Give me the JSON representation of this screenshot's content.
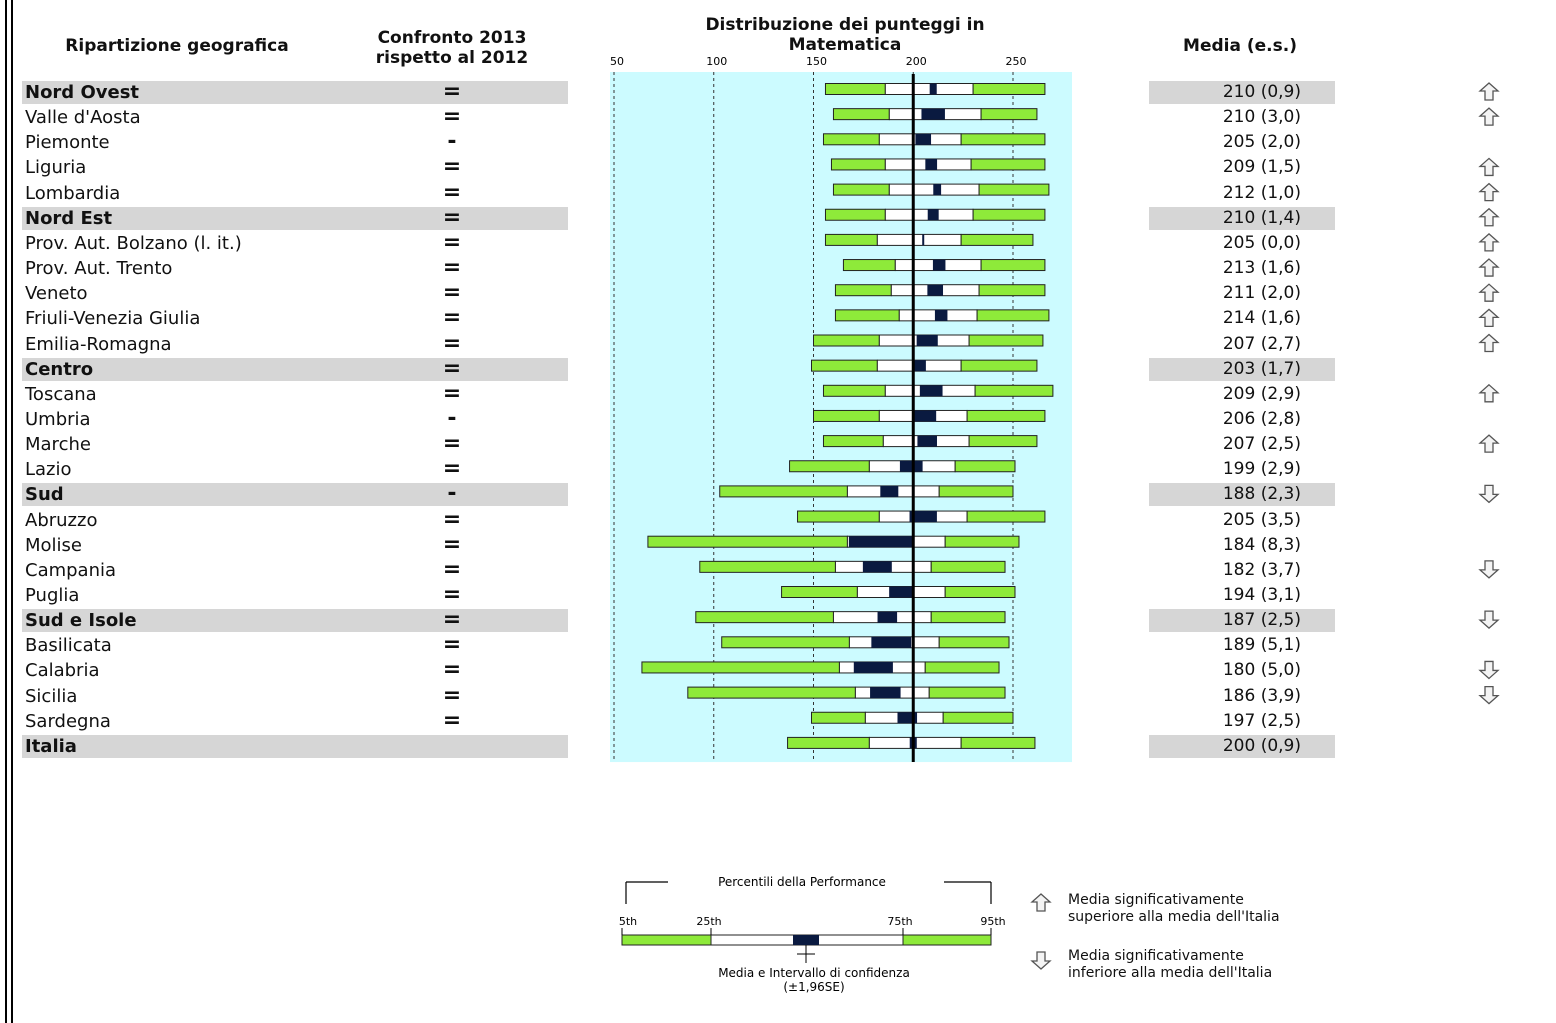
{
  "headers": {
    "region": "Ripartizione geografica",
    "compare_line1": "Confronto 2013",
    "compare_line2": "rispetto al 2012",
    "chart_line1": "Distribuzione dei punteggi in",
    "chart_line2": "Matematica",
    "mean": "Media (e.s.)"
  },
  "chart_data": {
    "type": "box-percentile",
    "xlim": [
      50,
      280
    ],
    "ticks": [
      50,
      100,
      150,
      200,
      250
    ],
    "reference_value": 200,
    "rows": [
      {
        "label": "Nord Ovest",
        "highlight": true,
        "compare": "=",
        "p5": 156,
        "p25": 186,
        "p75": 230,
        "p95": 266,
        "mean": 210,
        "se": 0.9,
        "mean_text": "210 (0,9)",
        "arrow": "up"
      },
      {
        "label": "Valle d'Aosta",
        "highlight": false,
        "compare": "=",
        "p5": 160,
        "p25": 188,
        "p75": 234,
        "p95": 262,
        "mean": 210,
        "se": 3.0,
        "mean_text": "210 (3,0)",
        "arrow": "up"
      },
      {
        "label": "Piemonte",
        "highlight": false,
        "compare": "-",
        "p5": 155,
        "p25": 183,
        "p75": 224,
        "p95": 266,
        "mean": 205,
        "se": 2.0,
        "mean_text": "205 (2,0)",
        "arrow": ""
      },
      {
        "label": "Liguria",
        "highlight": false,
        "compare": "=",
        "p5": 159,
        "p25": 186,
        "p75": 229,
        "p95": 266,
        "mean": 209,
        "se": 1.5,
        "mean_text": "209 (1,5)",
        "arrow": "up"
      },
      {
        "label": "Lombardia",
        "highlight": false,
        "compare": "=",
        "p5": 160,
        "p25": 188,
        "p75": 233,
        "p95": 268,
        "mean": 212,
        "se": 1.0,
        "mean_text": "212 (1,0)",
        "arrow": "up"
      },
      {
        "label": "Nord Est",
        "highlight": true,
        "compare": "=",
        "p5": 156,
        "p25": 186,
        "p75": 230,
        "p95": 266,
        "mean": 210,
        "se": 1.4,
        "mean_text": "210 (1,4)",
        "arrow": "up"
      },
      {
        "label": "Prov. Aut. Bolzano (l. it.)",
        "highlight": false,
        "compare": "=",
        "p5": 156,
        "p25": 182,
        "p75": 224,
        "p95": 260,
        "mean": 205,
        "se": 0.0,
        "mean_text": "205 (0,0)",
        "arrow": "up"
      },
      {
        "label": "Prov. Aut. Trento",
        "highlight": false,
        "compare": "=",
        "p5": 165,
        "p25": 191,
        "p75": 234,
        "p95": 266,
        "mean": 213,
        "se": 1.6,
        "mean_text": "213 (1,6)",
        "arrow": "up"
      },
      {
        "label": "Veneto",
        "highlight": false,
        "compare": "=",
        "p5": 161,
        "p25": 189,
        "p75": 233,
        "p95": 266,
        "mean": 211,
        "se": 2.0,
        "mean_text": "211 (2,0)",
        "arrow": "up"
      },
      {
        "label": "Friuli-Venezia Giulia",
        "highlight": false,
        "compare": "=",
        "p5": 161,
        "p25": 193,
        "p75": 232,
        "p95": 268,
        "mean": 214,
        "se": 1.6,
        "mean_text": "214 (1,6)",
        "arrow": "up"
      },
      {
        "label": "Emilia-Romagna",
        "highlight": false,
        "compare": "=",
        "p5": 150,
        "p25": 183,
        "p75": 228,
        "p95": 265,
        "mean": 207,
        "se": 2.7,
        "mean_text": "207 (2,7)",
        "arrow": "up"
      },
      {
        "label": "Centro",
        "highlight": true,
        "compare": "=",
        "p5": 149,
        "p25": 182,
        "p75": 224,
        "p95": 262,
        "mean": 203,
        "se": 1.7,
        "mean_text": "203 (1,7)",
        "arrow": ""
      },
      {
        "label": "Toscana",
        "highlight": false,
        "compare": "=",
        "p5": 155,
        "p25": 186,
        "p75": 231,
        "p95": 270,
        "mean": 209,
        "se": 2.9,
        "mean_text": "209 (2,9)",
        "arrow": "up"
      },
      {
        "label": "Umbria",
        "highlight": false,
        "compare": "-",
        "p5": 150,
        "p25": 183,
        "p75": 227,
        "p95": 266,
        "mean": 206,
        "se": 2.8,
        "mean_text": "206 (2,8)",
        "arrow": ""
      },
      {
        "label": "Marche",
        "highlight": false,
        "compare": "=",
        "p5": 155,
        "p25": 185,
        "p75": 228,
        "p95": 262,
        "mean": 207,
        "se": 2.5,
        "mean_text": "207 (2,5)",
        "arrow": "up"
      },
      {
        "label": "Lazio",
        "highlight": false,
        "compare": "=",
        "p5": 138,
        "p25": 178,
        "p75": 221,
        "p95": 251,
        "mean": 199,
        "se": 2.9,
        "mean_text": "199 (2,9)",
        "arrow": ""
      },
      {
        "label": "Sud",
        "highlight": true,
        "compare": "-",
        "p5": 103,
        "p25": 167,
        "p75": 213,
        "p95": 250,
        "mean": 188,
        "se": 2.3,
        "mean_text": "188 (2,3)",
        "arrow": "down"
      },
      {
        "label": "Abruzzo",
        "highlight": false,
        "compare": "=",
        "p5": 142,
        "p25": 183,
        "p75": 227,
        "p95": 266,
        "mean": 205,
        "se": 3.5,
        "mean_text": "205 (3,5)",
        "arrow": ""
      },
      {
        "label": "Molise",
        "highlight": false,
        "compare": "=",
        "p5": 67,
        "p25": 167,
        "p75": 216,
        "p95": 253,
        "mean": 184,
        "se": 8.3,
        "mean_text": "184 (8,3)",
        "arrow": ""
      },
      {
        "label": "Campania",
        "highlight": false,
        "compare": "=",
        "p5": 93,
        "p25": 161,
        "p75": 209,
        "p95": 246,
        "mean": 182,
        "se": 3.7,
        "mean_text": "182 (3,7)",
        "arrow": "down"
      },
      {
        "label": "Puglia",
        "highlight": false,
        "compare": "=",
        "p5": 134,
        "p25": 172,
        "p75": 216,
        "p95": 251,
        "mean": 194,
        "se": 3.1,
        "mean_text": "194 (3,1)",
        "arrow": ""
      },
      {
        "label": "Sud e Isole",
        "highlight": true,
        "compare": "=",
        "p5": 91,
        "p25": 160,
        "p75": 209,
        "p95": 246,
        "mean": 187,
        "se": 2.5,
        "mean_text": "187 (2,5)",
        "arrow": "down"
      },
      {
        "label": "Basilicata",
        "highlight": false,
        "compare": "=",
        "p5": 104,
        "p25": 168,
        "p75": 213,
        "p95": 248,
        "mean": 189,
        "se": 5.1,
        "mean_text": "189 (5,1)",
        "arrow": ""
      },
      {
        "label": "Calabria",
        "highlight": false,
        "compare": "=",
        "p5": 64,
        "p25": 163,
        "p75": 206,
        "p95": 243,
        "mean": 180,
        "se": 5.0,
        "mean_text": "180 (5,0)",
        "arrow": "down"
      },
      {
        "label": "Sicilia",
        "highlight": false,
        "compare": "=",
        "p5": 87,
        "p25": 171,
        "p75": 208,
        "p95": 246,
        "mean": 186,
        "se": 3.9,
        "mean_text": "186 (3,9)",
        "arrow": "down"
      },
      {
        "label": "Sardegna",
        "highlight": false,
        "compare": "=",
        "p5": 149,
        "p25": 176,
        "p75": 215,
        "p95": 250,
        "mean": 197,
        "se": 2.5,
        "mean_text": "197 (2,5)",
        "arrow": ""
      },
      {
        "label": "Italia",
        "highlight": true,
        "compare": "",
        "p5": 137,
        "p25": 178,
        "p75": 224,
        "p95": 261,
        "mean": 200,
        "se": 0.9,
        "mean_text": "200 (0,9)",
        "arrow": ""
      }
    ]
  },
  "legend": {
    "title": "Percentili della Performance",
    "p5": "5th",
    "p25": "25th",
    "p75": "75th",
    "p95": "95th",
    "mean_ci_line1": "Media e Intervallo di confidenza",
    "mean_ci_line2": "(±1,96SE)",
    "up_line1": "Media significativamente",
    "up_line2": "superiore alla media dell'Italia",
    "down_line1": "Media significativamente",
    "down_line2": "inferiore alla media dell'Italia"
  },
  "colors": {
    "panel": "#ccfbff",
    "bar": "#8eea3a",
    "ci": "#0a1a40",
    "row_highlight": "#d6d6d6"
  }
}
